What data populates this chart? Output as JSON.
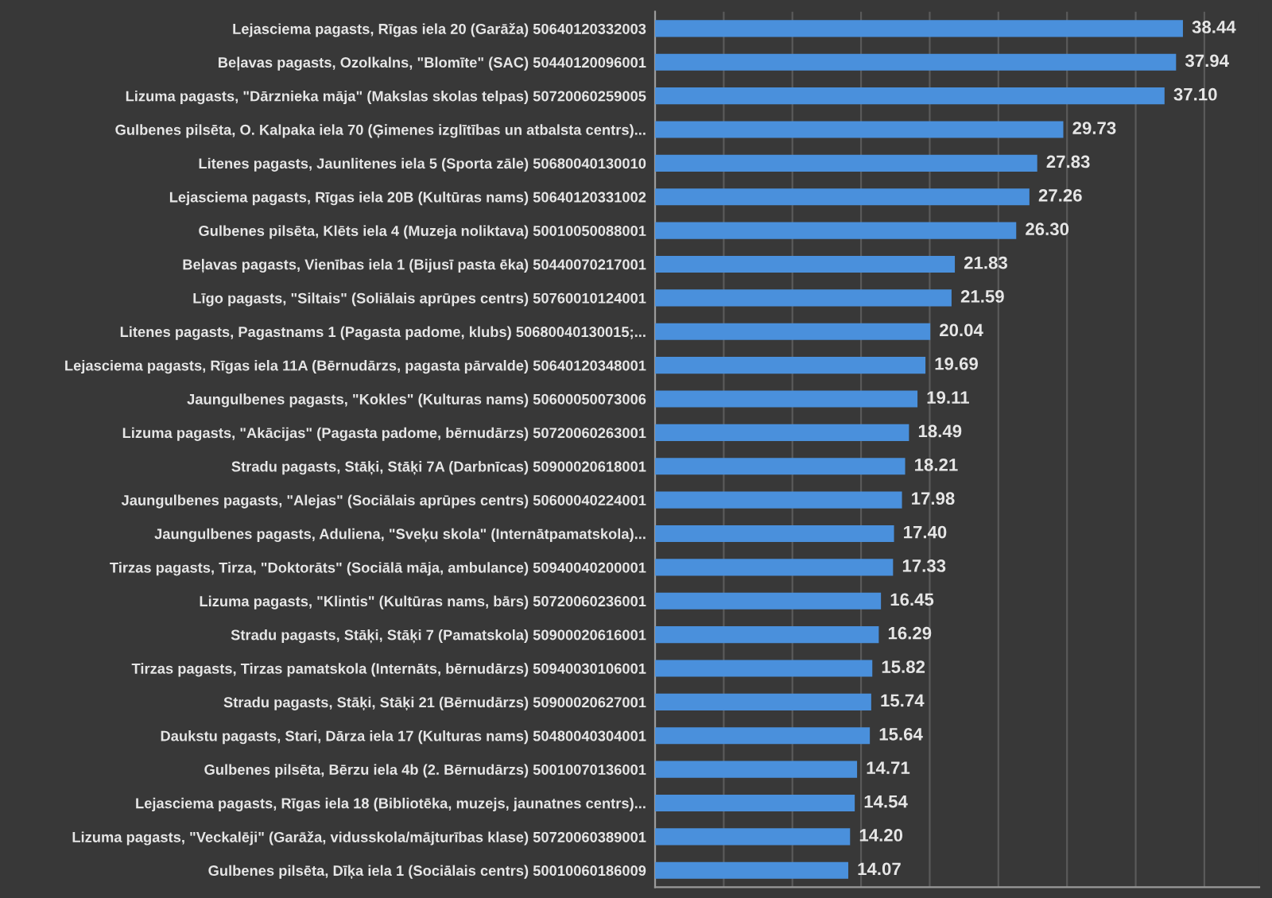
{
  "chart_data": {
    "type": "bar",
    "orientation": "horizontal",
    "categories": [
      "Lejasciema pagasts, Rīgas iela 20 (Garāža) 50640120332003",
      "Beļavas pagasts, Ozolkalns, \"Blomīte\" (SAC) 50440120096001",
      "Lizuma pagasts, \"Dārznieka māja\" (Makslas skolas telpas) 50720060259005",
      "Gulbenes pilsēta, O. Kalpaka iela 70 (Ģimenes izglītības un atbalsta centrs)...",
      "Litenes pagasts, Jaunlitenes iela 5 (Sporta zāle) 50680040130010",
      "Lejasciema pagasts, Rīgas iela 20B (Kultūras nams) 50640120331002",
      "Gulbenes pilsēta, Klēts iela 4 (Muzeja noliktava) 50010050088001",
      "Beļavas pagasts, Vienības iela 1 (Bijusī pasta ēka) 50440070217001",
      "Līgo pagasts, \"Siltais\" (Soliālais aprūpes centrs) 50760010124001",
      "Litenes pagasts, Pagastnams 1 (Pagasta padome, klubs) 50680040130015;...",
      "Lejasciema pagasts, Rīgas iela 11A (Bērnudārzs, pagasta pārvalde) 50640120348001",
      "Jaungulbenes pagasts, \"Kokles\" (Kulturas nams) 50600050073006",
      "Lizuma pagasts, \"Akācijas\" (Pagasta padome, bērnudārzs) 50720060263001",
      "Stradu pagasts, Stāķi, Stāķi 7A (Darbnīcas) 50900020618001",
      "Jaungulbenes pagasts, \"Alejas\" (Sociālais aprūpes centrs) 50600040224001",
      "Jaungulbenes pagasts, Aduliena, \"Sveķu skola\" (Internātpamatskola)...",
      "Tirzas pagasts, Tirza, \"Doktorāts\" (Sociālā māja, ambulance) 50940040200001",
      "Lizuma pagasts, \"Klintis\" (Kultūras nams, bārs) 50720060236001",
      "Stradu pagasts, Stāķi, Stāķi 7 (Pamatskola) 50900020616001",
      "Tirzas pagasts, Tirzas pamatskola (Internāts, bērnudārzs) 50940030106001",
      "Stradu pagasts, Stāķi, Stāķi 21 (Bērnudārzs) 50900020627001",
      "Daukstu pagasts, Stari, Dārza iela 17 (Kulturas nams) 50480040304001",
      "Gulbenes pilsēta, Bērzu iela 4b (2. Bērnudārzs) 50010070136001",
      "Lejasciema pagasts, Rīgas iela 18 (Bibliotēka, muzejs, jaunatnes centrs)...",
      "Lizuma pagasts, \"Veckalēji\" (Garāža, vidusskola/mājturības klase) 50720060389001",
      "Gulbenes pilsēta, Dīķa iela 1 (Sociālais centrs) 50010060186009"
    ],
    "values": [
      38.44,
      37.94,
      37.1,
      29.73,
      27.83,
      27.26,
      26.3,
      21.83,
      21.59,
      20.04,
      19.69,
      19.11,
      18.49,
      18.21,
      17.98,
      17.4,
      17.33,
      16.45,
      16.29,
      15.82,
      15.74,
      15.64,
      14.71,
      14.54,
      14.2,
      14.07
    ],
    "value_labels": [
      "38.44",
      "37.94",
      "37.10",
      "29.73",
      "27.83",
      "27.26",
      "26.30",
      "21.83",
      "21.59",
      "20.04",
      "19.69",
      "19.11",
      "18.49",
      "18.21",
      "17.98",
      "17.40",
      "17.33",
      "16.45",
      "16.29",
      "15.82",
      "15.74",
      "15.64",
      "14.71",
      "14.54",
      "14.20",
      "14.07"
    ],
    "color": "#4a90dc",
    "xlim": [
      0,
      44
    ],
    "xticks": [
      {
        "value": 0,
        "label": null
      },
      {
        "value": 5,
        "label": null
      },
      {
        "value": 10,
        "label": null
      },
      {
        "value": 15,
        "label": null
      },
      {
        "value": 20,
        "label": null
      },
      {
        "value": 25,
        "label": null
      },
      {
        "value": 30,
        "label": null
      },
      {
        "value": 35,
        "label": null
      },
      {
        "value": 40,
        "label": null
      }
    ],
    "grid": "x",
    "tick_labels": "y"
  }
}
